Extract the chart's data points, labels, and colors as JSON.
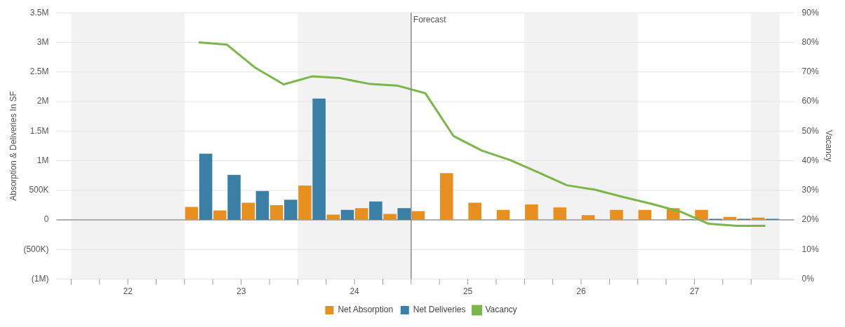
{
  "chart_data": {
    "type": "bar",
    "ylabel": "Absorption & Deliveries In SF",
    "y2label": "Vacancy",
    "x": [
      22.625,
      22.875,
      23.125,
      23.375,
      23.625,
      23.875,
      24.125,
      24.375,
      24.625,
      24.875,
      25.125,
      25.375,
      25.625,
      25.875,
      26.125,
      26.375,
      26.625,
      26.875,
      27.125,
      27.375,
      27.625
    ],
    "xlim": [
      21.5,
      27.75
    ],
    "xticks": [
      {
        "value": 21.5,
        "label": null
      },
      {
        "value": 21.75,
        "label": null
      },
      22,
      {
        "value": 22.25,
        "label": null
      },
      {
        "value": 22.5,
        "label": null
      },
      {
        "value": 22.75,
        "label": null
      },
      23,
      {
        "value": 23.25,
        "label": null
      },
      {
        "value": 23.5,
        "label": null
      },
      {
        "value": 23.75,
        "label": null
      },
      24,
      {
        "value": 24.25,
        "label": null
      },
      {
        "value": 24.5,
        "label": null
      },
      {
        "value": 24.75,
        "label": null
      },
      25,
      {
        "value": 25.25,
        "label": null
      },
      {
        "value": 25.5,
        "label": null
      },
      {
        "value": 25.75,
        "label": null
      },
      26,
      {
        "value": 26.25,
        "label": null
      },
      {
        "value": 26.5,
        "label": null
      },
      {
        "value": 26.75,
        "label": null
      },
      27,
      {
        "value": 27.25,
        "label": null
      },
      {
        "value": 27.5,
        "label": null
      }
    ],
    "ylim": [
      -1000000,
      3500000
    ],
    "yticks": [
      {
        "value": -1000000,
        "label": "(1M)"
      },
      {
        "value": -500000,
        "label": "(500K)"
      },
      0,
      {
        "value": 500000,
        "label": "500K"
      },
      {
        "value": 1000000,
        "label": "1M"
      },
      {
        "value": 1500000,
        "label": "1.5M"
      },
      {
        "value": 2000000,
        "label": "2M"
      },
      {
        "value": 2500000,
        "label": "2.5M"
      },
      {
        "value": 3000000,
        "label": "3M"
      },
      {
        "value": 3500000,
        "label": "3.5M"
      }
    ],
    "y2lim": [
      0,
      90
    ],
    "y2ticks": [
      {
        "value": 0,
        "label": "0%"
      },
      {
        "value": 10,
        "label": "10%"
      },
      {
        "value": 20,
        "label": "20%"
      },
      {
        "value": 30,
        "label": "30%"
      },
      {
        "value": 40,
        "label": "40%"
      },
      {
        "value": 50,
        "label": "50%"
      },
      {
        "value": 60,
        "label": "60%"
      },
      {
        "value": 70,
        "label": "70%"
      },
      {
        "value": 80,
        "label": "80%"
      },
      {
        "value": 90,
        "label": "90%"
      }
    ],
    "series": [
      {
        "name": "Net Absorption",
        "color": "#e8901f",
        "values": [
          220000,
          160000,
          290000,
          250000,
          580000,
          90000,
          200000,
          100000,
          150000,
          790000,
          290000,
          170000,
          260000,
          210000,
          80000,
          170000,
          170000,
          200000,
          170000,
          50000,
          40000
        ]
      },
      {
        "name": "Net Deliveries",
        "color": "#3a7fa6",
        "values": [
          1120000,
          760000,
          490000,
          340000,
          2050000,
          170000,
          310000,
          200000,
          0,
          0,
          0,
          0,
          0,
          0,
          0,
          0,
          0,
          10000,
          20000,
          20000,
          20000
        ]
      },
      {
        "name": "Vacancy",
        "type": "line",
        "axis": "y2",
        "color": "#7ab648",
        "values": [
          80,
          79.2,
          71.4,
          65.8,
          68.5,
          67.9,
          66,
          65.4,
          62.8,
          48.3,
          43.4,
          40.2,
          36,
          31.7,
          30.2,
          27.7,
          25.4,
          22.8,
          18.7,
          18,
          18
        ]
      }
    ],
    "ref_lines": [
      {
        "axis": "x",
        "value": 24.5,
        "label": "Forecast",
        "color": "#888888"
      }
    ],
    "bands": [
      {
        "axis": "x",
        "from": 21.5,
        "to": 22.5,
        "color": "#f2f2f2"
      },
      {
        "axis": "x",
        "from": 23.5,
        "to": 24.5,
        "color": "#f2f2f2"
      },
      {
        "axis": "x",
        "from": 25.5,
        "to": 26.5,
        "color": "#f2f2f2"
      },
      {
        "axis": "x",
        "from": 27.5,
        "to": 27.75,
        "color": "#f2f2f2"
      }
    ],
    "grid": "y",
    "legend": "bottom",
    "marker": "none",
    "line_style": "solid"
  }
}
